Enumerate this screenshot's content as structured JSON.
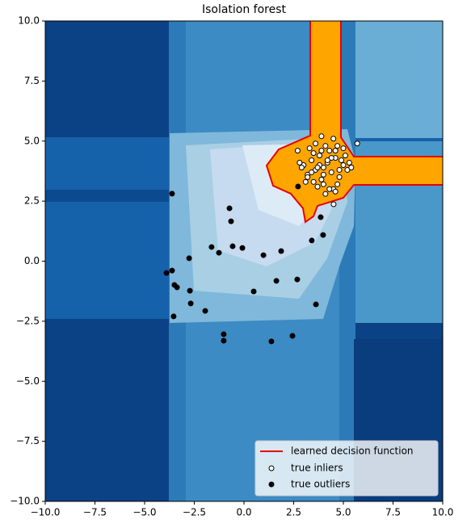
{
  "chart_data": {
    "type": "scatter",
    "title": "Isolation forest",
    "xlim": [
      -10,
      10
    ],
    "ylim": [
      -10,
      10
    ],
    "xticks": [
      {
        "value": -10,
        "label": "−10.0"
      },
      {
        "value": -7.5,
        "label": "−7.5"
      },
      {
        "value": -5,
        "label": "−5.0"
      },
      {
        "value": -2.5,
        "label": "−2.5"
      },
      {
        "value": 0,
        "label": "0.0"
      },
      {
        "value": 2.5,
        "label": "2.5"
      },
      {
        "value": 5,
        "label": "5.0"
      },
      {
        "value": 7.5,
        "label": "7.5"
      },
      {
        "value": 10,
        "label": "10.0"
      }
    ],
    "yticks": [
      {
        "value": -10,
        "label": "−10.0"
      },
      {
        "value": -7.5,
        "label": "−7.5"
      },
      {
        "value": -5,
        "label": "−5.0"
      },
      {
        "value": -2.5,
        "label": "−2.5"
      },
      {
        "value": 0,
        "label": "0.0"
      },
      {
        "value": 2.5,
        "label": "2.5"
      },
      {
        "value": 5,
        "label": "5.0"
      },
      {
        "value": 7.5,
        "label": "7.5"
      },
      {
        "value": 10,
        "label": "10.0"
      }
    ],
    "decision_function": {
      "name": "learned decision function",
      "color": "#e8000b"
    },
    "legend": "lower right",
    "series": [
      {
        "name": "true inliers",
        "color": "#ffffff",
        "x": [
          3.0,
          3.2,
          3.4,
          3.6,
          3.8,
          4.0,
          4.2,
          4.4,
          4.6,
          4.8,
          5.0,
          5.2,
          3.1,
          3.5,
          3.9,
          4.3,
          4.7,
          5.1,
          3.3,
          3.7,
          4.1,
          4.5,
          4.9,
          5.3,
          2.9,
          3.6,
          4.0,
          4.4,
          4.8,
          5.4,
          3.2,
          3.8,
          4.2,
          4.6,
          5.0,
          3.5,
          3.9,
          4.3,
          4.7,
          3.4,
          4.1,
          4.5,
          2.8,
          5.7,
          4.6,
          3.9,
          2.7,
          4.0,
          3.7,
          4.51
        ],
        "values": [
          4.0,
          3.6,
          4.2,
          3.8,
          4.4,
          3.9,
          4.1,
          3.7,
          4.3,
          3.5,
          4.0,
          3.8,
          3.3,
          4.5,
          3.4,
          4.6,
          3.2,
          4.4,
          4.7,
          3.1,
          4.8,
          3.0,
          4.2,
          4.1,
          3.9,
          4.9,
          3.6,
          4.3,
          3.8,
          3.9,
          3.5,
          4.0,
          4.2,
          4.6,
          4.7,
          3.3,
          5.2,
          3.0,
          4.8,
          3.7,
          2.8,
          5.1,
          4.1,
          4.9,
          2.9,
          4.6,
          4.6,
          3.2,
          3.9,
          2.37
        ]
      },
      {
        "name": "true outliers",
        "color": "#000000",
        "x": [
          -3.62,
          -0.73,
          -0.65,
          -1.63,
          -1.26,
          -0.57,
          -0.08,
          -2.76,
          0.98,
          1.87,
          3.41,
          3.98,
          3.86,
          2.72,
          -3.62,
          -3.9,
          -3.5,
          -3.37,
          -2.72,
          -2.68,
          -1.95,
          -3.54,
          1.63,
          0.49,
          2.68,
          3.62,
          -1.02,
          -1.02,
          1.38,
          2.44
        ],
        "values": [
          2.81,
          2.2,
          1.66,
          0.59,
          0.35,
          0.62,
          0.55,
          0.12,
          0.25,
          0.42,
          0.86,
          1.09,
          1.83,
          3.11,
          -0.39,
          -0.49,
          -0.99,
          -1.09,
          -1.23,
          -1.76,
          -2.07,
          -2.3,
          -0.82,
          -1.26,
          -0.76,
          -1.8,
          -3.04,
          -3.31,
          -3.34,
          -3.11
        ]
      }
    ]
  }
}
